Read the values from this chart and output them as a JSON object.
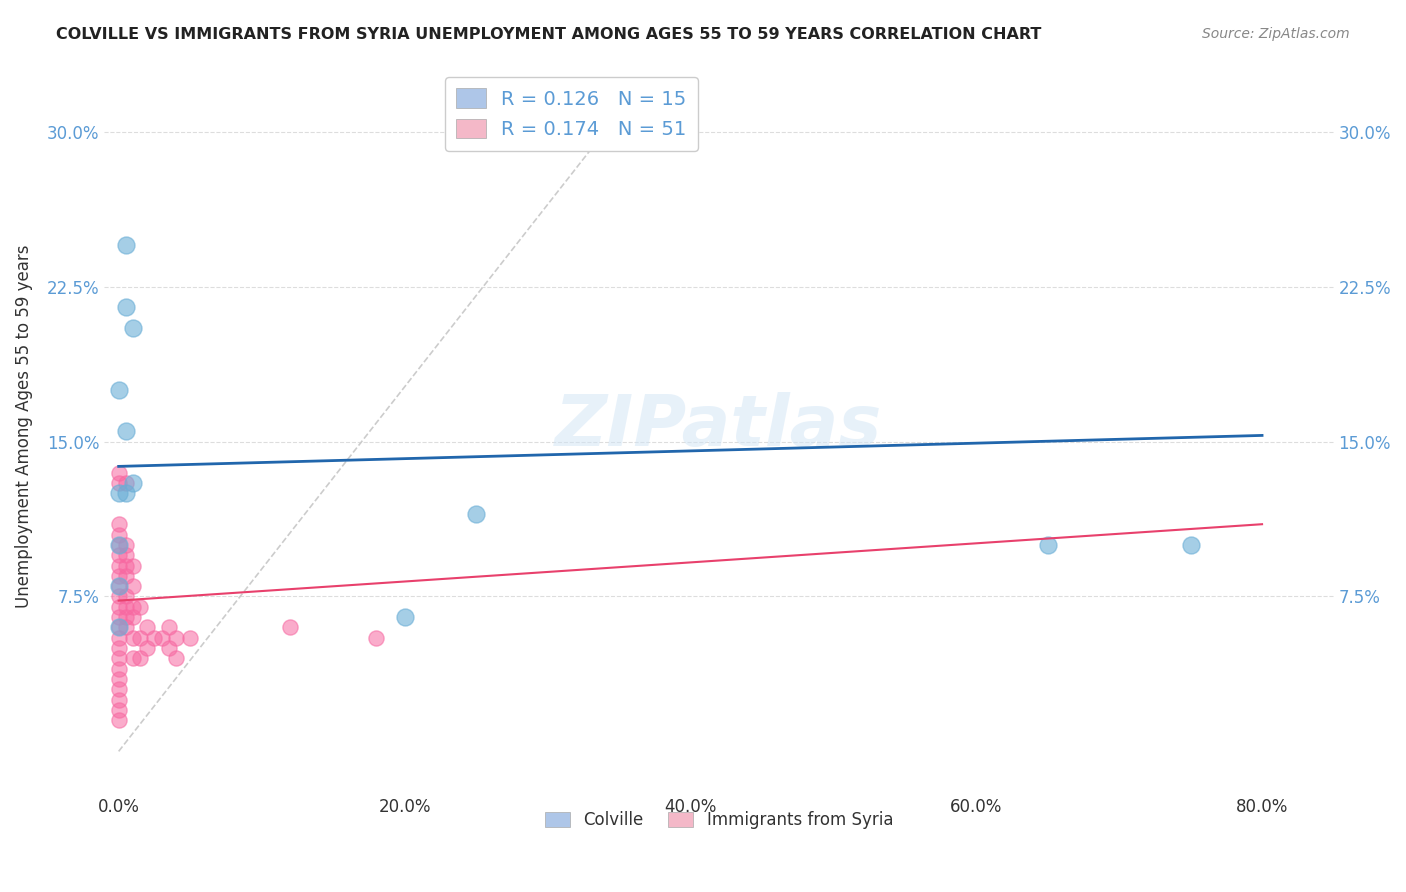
{
  "title": "COLVILLE VS IMMIGRANTS FROM SYRIA UNEMPLOYMENT AMONG AGES 55 TO 59 YEARS CORRELATION CHART",
  "source": "Source: ZipAtlas.com",
  "ylabel": "Unemployment Among Ages 55 to 59 years",
  "xlabel_ticks": [
    "0.0%",
    "20.0%",
    "40.0%",
    "60.0%",
    "80.0%"
  ],
  "ytick_labels": [
    "7.5%",
    "15.0%",
    "22.5%",
    "30.0%"
  ],
  "ytick_values": [
    0.075,
    0.15,
    0.225,
    0.3
  ],
  "xtick_values": [
    0.0,
    0.2,
    0.4,
    0.6,
    0.8
  ],
  "xlim": [
    -0.01,
    0.85
  ],
  "ylim": [
    -0.02,
    0.335
  ],
  "legend_label1": "R = 0.126   N = 15",
  "legend_label2": "R = 0.174   N = 51",
  "legend_color1": "#aec6e8",
  "legend_color2": "#f4b8c8",
  "colville_color": "#6aaed6",
  "syria_color": "#f768a1",
  "trend_colville_color": "#2166ac",
  "trend_syria_color": "#e8406c",
  "diagonal_color": "#cccccc",
  "watermark": "ZIPatlas",
  "colville_x": [
    0.005,
    0.005,
    0.01,
    0.0,
    0.005,
    0.01,
    0.0,
    0.005,
    0.25,
    0.2,
    0.65,
    0.75,
    0.0,
    0.0,
    0.0
  ],
  "colville_y": [
    0.245,
    0.215,
    0.205,
    0.175,
    0.155,
    0.13,
    0.125,
    0.125,
    0.115,
    0.065,
    0.1,
    0.1,
    0.1,
    0.08,
    0.06
  ],
  "syria_x": [
    0.0,
    0.0,
    0.0,
    0.0,
    0.0,
    0.0,
    0.0,
    0.0,
    0.0,
    0.0,
    0.0,
    0.0,
    0.0,
    0.0,
    0.0,
    0.0,
    0.0,
    0.0,
    0.0,
    0.0,
    0.0,
    0.0,
    0.005,
    0.005,
    0.005,
    0.005,
    0.005,
    0.005,
    0.005,
    0.005,
    0.005,
    0.01,
    0.01,
    0.01,
    0.01,
    0.01,
    0.01,
    0.015,
    0.015,
    0.015,
    0.02,
    0.02,
    0.025,
    0.03,
    0.035,
    0.035,
    0.04,
    0.04,
    0.05,
    0.12,
    0.18
  ],
  "syria_y": [
    0.135,
    0.13,
    0.11,
    0.105,
    0.1,
    0.095,
    0.09,
    0.085,
    0.08,
    0.075,
    0.07,
    0.065,
    0.06,
    0.055,
    0.05,
    0.045,
    0.04,
    0.035,
    0.03,
    0.025,
    0.02,
    0.015,
    0.13,
    0.1,
    0.095,
    0.09,
    0.085,
    0.075,
    0.07,
    0.065,
    0.06,
    0.09,
    0.08,
    0.07,
    0.065,
    0.055,
    0.045,
    0.07,
    0.055,
    0.045,
    0.06,
    0.05,
    0.055,
    0.055,
    0.06,
    0.05,
    0.055,
    0.045,
    0.055,
    0.06,
    0.055
  ],
  "blue_line_x": [
    0.0,
    0.8
  ],
  "blue_line_y": [
    0.138,
    0.153
  ],
  "pink_line_x": [
    0.0,
    0.8
  ],
  "pink_line_y": [
    0.073,
    0.11
  ],
  "diag_line_x": [
    0.0,
    0.34
  ],
  "diag_line_y": [
    0.0,
    0.3
  ]
}
